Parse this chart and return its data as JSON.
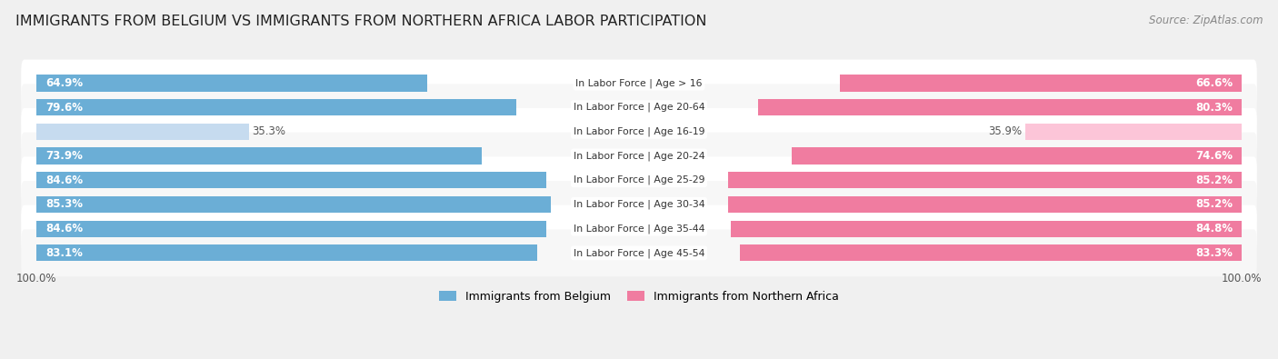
{
  "title": "IMMIGRANTS FROM BELGIUM VS IMMIGRANTS FROM NORTHERN AFRICA LABOR PARTICIPATION",
  "source": "Source: ZipAtlas.com",
  "categories": [
    "In Labor Force | Age > 16",
    "In Labor Force | Age 20-64",
    "In Labor Force | Age 16-19",
    "In Labor Force | Age 20-24",
    "In Labor Force | Age 25-29",
    "In Labor Force | Age 30-34",
    "In Labor Force | Age 35-44",
    "In Labor Force | Age 45-54"
  ],
  "belgium_values": [
    64.9,
    79.6,
    35.3,
    73.9,
    84.6,
    85.3,
    84.6,
    83.1
  ],
  "n_africa_values": [
    66.6,
    80.3,
    35.9,
    74.6,
    85.2,
    85.2,
    84.8,
    83.3
  ],
  "belgium_color": "#6baed6",
  "belgium_color_light": "#c6dbef",
  "n_africa_color": "#f07ca0",
  "n_africa_color_light": "#fcc5d8",
  "label_belgium": "Immigrants from Belgium",
  "label_n_africa": "Immigrants from Northern Africa",
  "bar_height": 0.68,
  "bg_color": "#f0f0f0",
  "row_bg_even": "#ffffff",
  "row_bg_odd": "#f7f7f7",
  "max_val": 100.0,
  "title_fontsize": 11.5,
  "source_fontsize": 8.5,
  "bar_label_fontsize": 8.5,
  "cat_label_fontsize": 7.8,
  "light_threshold": 50.0
}
